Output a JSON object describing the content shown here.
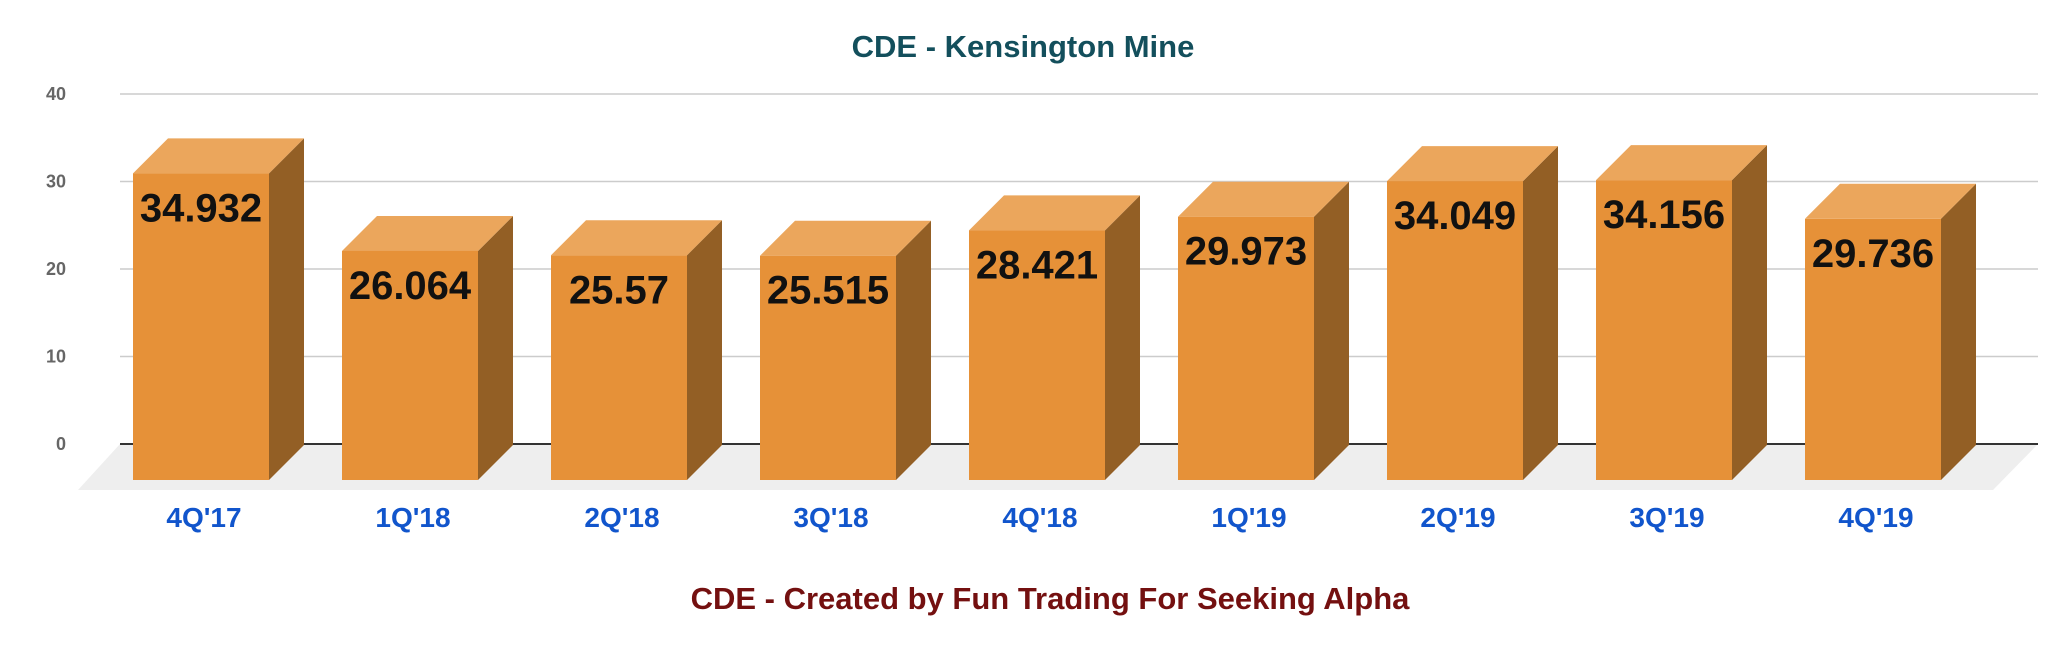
{
  "chart_data": {
    "type": "bar",
    "title": "CDE - Kensington Mine",
    "subtitle": "CDE - Created by Fun Trading  For Seeking Alpha",
    "xlabel": "",
    "ylabel": "",
    "categories": [
      "4Q'17",
      "1Q'18",
      "2Q'18",
      "3Q'18",
      "4Q'18",
      "1Q'19",
      "2Q'19",
      "3Q'19",
      "4Q'19"
    ],
    "values": [
      34.932,
      26.064,
      25.57,
      25.515,
      28.421,
      29.973,
      34.049,
      34.156,
      29.736
    ],
    "data_labels": [
      "34.932",
      "26.064",
      "25.57",
      "25.515",
      "28.421",
      "29.973",
      "34.049",
      "34.156",
      "29.736"
    ],
    "y_ticks": [
      "0",
      "10",
      "20",
      "30",
      "40"
    ],
    "ylim": [
      0,
      40
    ],
    "grid": true,
    "legend": "none",
    "style": "3d-bar",
    "colors": {
      "bar_front": "#e69138",
      "bar_top": "#eba65c",
      "bar_side": "#935f25",
      "floor": "#eeeeee",
      "gridline": "#cccccc",
      "baseline": "#333333",
      "title": "#134f5c",
      "footer": "#741010",
      "x_tick": "#1155cc",
      "y_tick": "#666666"
    }
  }
}
